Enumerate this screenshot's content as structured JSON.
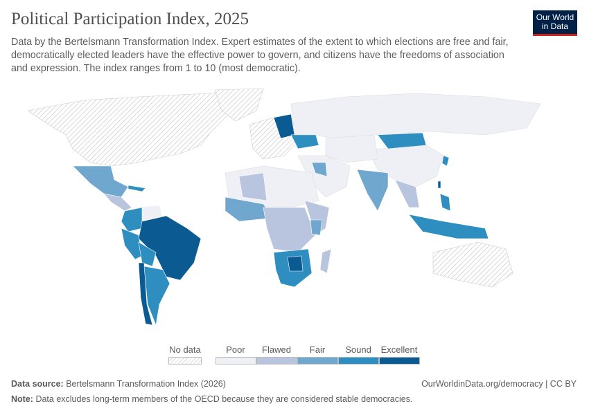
{
  "header": {
    "title": "Political Participation Index, 2025",
    "subtitle": "Data by the Bertelsmann Transformation Index. Expert estimates of the extent to which elections are free and fair, democratically elected leaders have the effective power to govern, and citizens have the freedoms of association and expression. The index ranges from 1 to 10 (most democratic).",
    "logo": "Our World in Data"
  },
  "colors": {
    "no_data": "hatched",
    "poor": "#efeff6",
    "flawed": "#b9c5df",
    "fair": "#6fa7cf",
    "sound": "#2e8ec0",
    "excellent": "#0b5b92"
  },
  "legend": {
    "no_data": "No data",
    "bins": [
      "Poor",
      "Flawed",
      "Fair",
      "Sound",
      "Excellent"
    ]
  },
  "footer": {
    "source_label": "Data source:",
    "source": "Bertelsmann Transformation Index (2026)",
    "link": "OurWorldinData.org/democracy | CC BY",
    "note_label": "Note:",
    "note": "Data excludes long-term members of the OECD because they are considered stable democracies."
  }
}
